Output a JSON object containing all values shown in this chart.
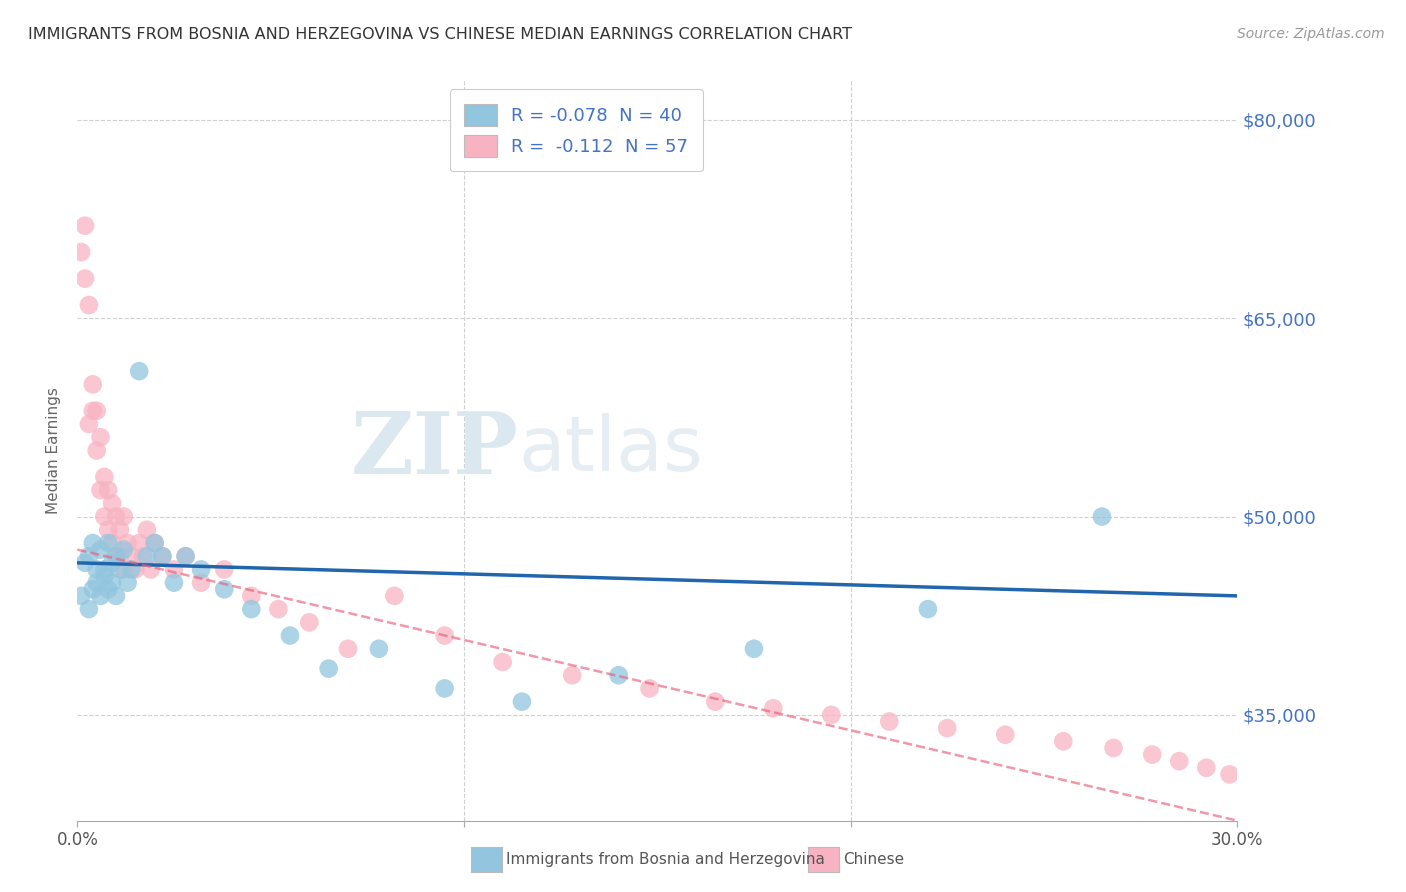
{
  "title": "IMMIGRANTS FROM BOSNIA AND HERZEGOVINA VS CHINESE MEDIAN EARNINGS CORRELATION CHART",
  "source": "Source: ZipAtlas.com",
  "ylabel": "Median Earnings",
  "yticks": [
    35000,
    50000,
    65000,
    80000
  ],
  "ytick_labels": [
    "$35,000",
    "$50,000",
    "$65,000",
    "$80,000"
  ],
  "xlim": [
    0.0,
    0.3
  ],
  "ylim": [
    27000,
    83000
  ],
  "legend_label1": "R = -0.078  N = 40",
  "legend_label2": "R =  -0.112  N = 57",
  "color_blue": "#92c5de",
  "color_pink": "#f7b3c2",
  "line_color_blue": "#2166ac",
  "line_color_pink": "#e8607a",
  "bosnia_x": [
    0.001,
    0.002,
    0.003,
    0.003,
    0.004,
    0.004,
    0.005,
    0.005,
    0.006,
    0.006,
    0.007,
    0.007,
    0.008,
    0.008,
    0.009,
    0.009,
    0.01,
    0.01,
    0.011,
    0.012,
    0.013,
    0.014,
    0.016,
    0.018,
    0.02,
    0.022,
    0.025,
    0.028,
    0.032,
    0.038,
    0.045,
    0.055,
    0.065,
    0.078,
    0.095,
    0.115,
    0.14,
    0.175,
    0.22,
    0.265
  ],
  "bosnia_y": [
    44000,
    46500,
    43000,
    47000,
    44500,
    48000,
    45000,
    46000,
    47500,
    44000,
    46000,
    45500,
    48000,
    44500,
    46500,
    45000,
    47000,
    44000,
    46000,
    47500,
    45000,
    46000,
    61000,
    47000,
    48000,
    47000,
    45000,
    47000,
    46000,
    44500,
    43000,
    41000,
    38500,
    40000,
    37000,
    36000,
    38000,
    40000,
    43000,
    50000
  ],
  "chinese_x": [
    0.001,
    0.002,
    0.002,
    0.003,
    0.003,
    0.004,
    0.004,
    0.005,
    0.005,
    0.006,
    0.006,
    0.007,
    0.007,
    0.008,
    0.008,
    0.009,
    0.009,
    0.01,
    0.01,
    0.011,
    0.011,
    0.012,
    0.012,
    0.013,
    0.014,
    0.015,
    0.016,
    0.017,
    0.018,
    0.019,
    0.02,
    0.022,
    0.025,
    0.028,
    0.032,
    0.038,
    0.045,
    0.052,
    0.06,
    0.07,
    0.082,
    0.095,
    0.11,
    0.128,
    0.148,
    0.165,
    0.18,
    0.195,
    0.21,
    0.225,
    0.24,
    0.255,
    0.268,
    0.278,
    0.285,
    0.292,
    0.298
  ],
  "chinese_y": [
    70000,
    72000,
    68000,
    66000,
    57000,
    60000,
    58000,
    55000,
    58000,
    56000,
    52000,
    53000,
    50000,
    52000,
    49000,
    51000,
    48000,
    50000,
    47000,
    49000,
    47000,
    50000,
    46000,
    48000,
    47000,
    46000,
    48000,
    47000,
    49000,
    46000,
    48000,
    47000,
    46000,
    47000,
    45000,
    46000,
    44000,
    43000,
    42000,
    40000,
    44000,
    41000,
    39000,
    38000,
    37000,
    36000,
    35500,
    35000,
    34500,
    34000,
    33500,
    33000,
    32500,
    32000,
    31500,
    31000,
    30500
  ],
  "bos_line_x0": 0.0,
  "bos_line_y0": 46500,
  "bos_line_x1": 0.3,
  "bos_line_y1": 44000,
  "chi_line_x0": 0.0,
  "chi_line_y0": 47500,
  "chi_line_x1": 0.3,
  "chi_line_y1": 27000
}
